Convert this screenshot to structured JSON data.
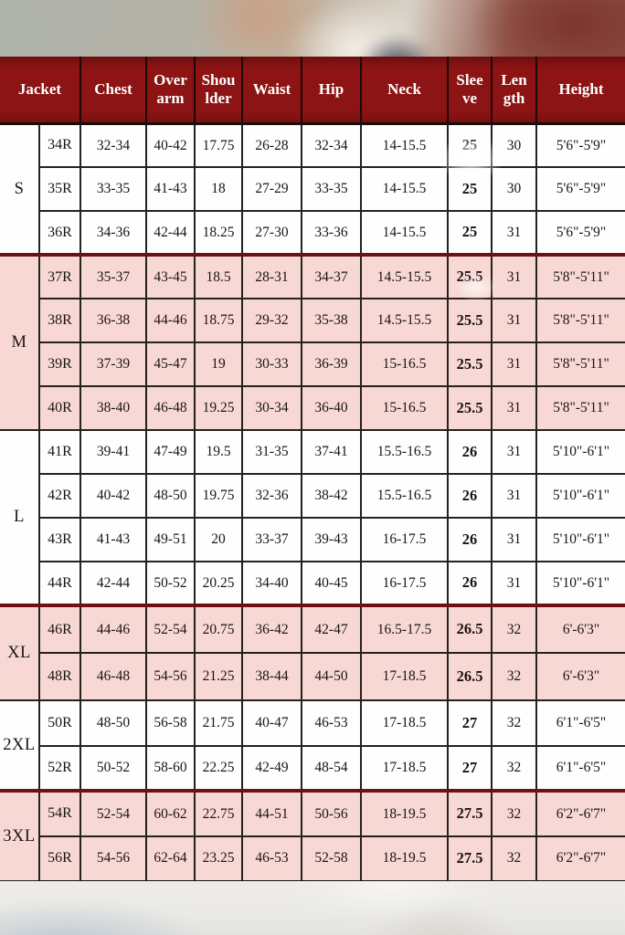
{
  "colors": {
    "header_bg": "#8c1414",
    "header_text": "#ffffff",
    "row_pink": "#f8d8d4",
    "row_white": "#fefefe",
    "grid_line": "#26211d",
    "group_separator": "#6e1111"
  },
  "chart_data": {
    "type": "table",
    "columns": [
      "Jacket",
      "Chest",
      "Over arm",
      "Shou lder",
      "Waist",
      "Hip",
      "Neck",
      "Slee ve",
      "Len gth",
      "Height"
    ],
    "groups": [
      {
        "size": "S",
        "shade": "white",
        "rows": [
          [
            "34R",
            "32-34",
            "40-42",
            "17.75",
            "26-28",
            "32-34",
            "14-15.5",
            "25",
            "30",
            "5'6\"-5'9\""
          ],
          [
            "35R",
            "33-35",
            "41-43",
            "18",
            "27-29",
            "33-35",
            "14-15.5",
            "25",
            "30",
            "5'6\"-5'9\""
          ],
          [
            "36R",
            "34-36",
            "42-44",
            "18.25",
            "27-30",
            "33-36",
            "14-15.5",
            "25",
            "31",
            "5'6\"-5'9\""
          ]
        ]
      },
      {
        "size": "M",
        "shade": "pink",
        "rows": [
          [
            "37R",
            "35-37",
            "43-45",
            "18.5",
            "28-31",
            "34-37",
            "14.5-15.5",
            "25.5",
            "31",
            "5'8\"-5'11\""
          ],
          [
            "38R",
            "36-38",
            "44-46",
            "18.75",
            "29-32",
            "35-38",
            "14.5-15.5",
            "25.5",
            "31",
            "5'8\"-5'11\""
          ],
          [
            "39R",
            "37-39",
            "45-47",
            "19",
            "30-33",
            "36-39",
            "15-16.5",
            "25.5",
            "31",
            "5'8\"-5'11\""
          ],
          [
            "40R",
            "38-40",
            "46-48",
            "19.25",
            "30-34",
            "36-40",
            "15-16.5",
            "25.5",
            "31",
            "5'8\"-5'11\""
          ]
        ]
      },
      {
        "size": "L",
        "shade": "white",
        "rows": [
          [
            "41R",
            "39-41",
            "47-49",
            "19.5",
            "31-35",
            "37-41",
            "15.5-16.5",
            "26",
            "31",
            "5'10\"-6'1\""
          ],
          [
            "42R",
            "40-42",
            "48-50",
            "19.75",
            "32-36",
            "38-42",
            "15.5-16.5",
            "26",
            "31",
            "5'10\"-6'1\""
          ],
          [
            "43R",
            "41-43",
            "49-51",
            "20",
            "33-37",
            "39-43",
            "16-17.5",
            "26",
            "31",
            "5'10\"-6'1\""
          ],
          [
            "44R",
            "42-44",
            "50-52",
            "20.25",
            "34-40",
            "40-45",
            "16-17.5",
            "26",
            "31",
            "5'10\"-6'1\""
          ]
        ]
      },
      {
        "size": "XL",
        "shade": "pink",
        "rows": [
          [
            "46R",
            "44-46",
            "52-54",
            "20.75",
            "36-42",
            "42-47",
            "16.5-17.5",
            "26.5",
            "32",
            "6'-6'3\""
          ],
          [
            "48R",
            "46-48",
            "54-56",
            "21.25",
            "38-44",
            "44-50",
            "17-18.5",
            "26.5",
            "32",
            "6'-6'3\""
          ]
        ]
      },
      {
        "size": "2XL",
        "shade": "white",
        "rows": [
          [
            "50R",
            "48-50",
            "56-58",
            "21.75",
            "40-47",
            "46-53",
            "17-18.5",
            "27",
            "32",
            "6'1\"-6'5\""
          ],
          [
            "52R",
            "50-52",
            "58-60",
            "22.25",
            "42-49",
            "48-54",
            "17-18.5",
            "27",
            "32",
            "6'1\"-6'5\""
          ]
        ]
      },
      {
        "size": "3XL",
        "shade": "pink",
        "rows": [
          [
            "54R",
            "52-54",
            "60-62",
            "22.75",
            "44-51",
            "50-56",
            "18-19.5",
            "27.5",
            "32",
            "6'2\"-6'7\""
          ],
          [
            "56R",
            "54-56",
            "62-64",
            "23.25",
            "46-53",
            "52-58",
            "18-19.5",
            "27.5",
            "32",
            "6'2\"-6'7\""
          ]
        ]
      }
    ]
  }
}
